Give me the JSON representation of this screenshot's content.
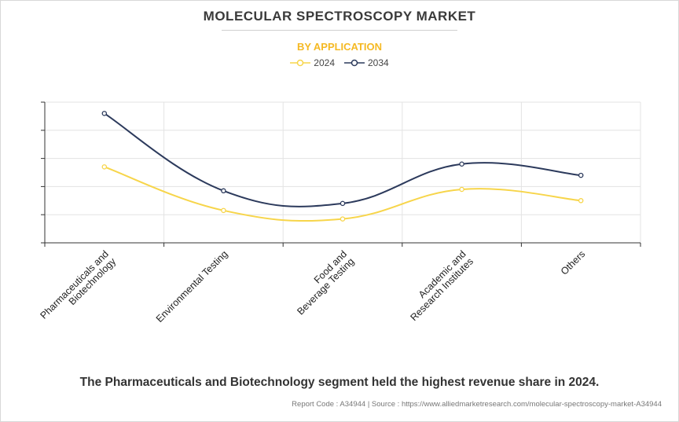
{
  "title": "MOLECULAR SPECTROSCOPY MARKET",
  "subtitle": "BY APPLICATION",
  "caption": "The Pharmaceuticals and Biotechnology segment held the highest revenue share in 2024.",
  "source_text": "Report Code : A34944  |  Source : https://www.alliedmarketresearch.com/molecular-spectroscopy-market-A34944",
  "colors": {
    "series_2024": "#f7d54a",
    "series_2034": "#2c3a5c",
    "subtitle": "#f5b923"
  },
  "chart_data": {
    "type": "line",
    "title": "MOLECULAR SPECTROSCOPY MARKET",
    "subtitle": "BY APPLICATION",
    "categories": [
      [
        "Pharmaceuticals and",
        "Biotechnology"
      ],
      [
        "Environmental Testing"
      ],
      [
        "Food and",
        "Beverage Testing"
      ],
      [
        "Academic and",
        "Research Institutes"
      ],
      [
        "Others"
      ]
    ],
    "series": [
      {
        "name": "2024",
        "color": "#f7d54a",
        "values": [
          2.7,
          1.15,
          0.85,
          1.9,
          1.5
        ]
      },
      {
        "name": "2034",
        "color": "#2c3a5c",
        "values": [
          4.6,
          1.85,
          1.4,
          2.8,
          2.4
        ]
      }
    ],
    "ylim": [
      0,
      5
    ],
    "yticks": [
      0,
      1,
      2,
      3,
      4,
      5
    ],
    "y_tick_labels_shown": false,
    "grid": true,
    "smooth": true,
    "legend_position": "top-center",
    "xlabel": "",
    "ylabel": ""
  }
}
